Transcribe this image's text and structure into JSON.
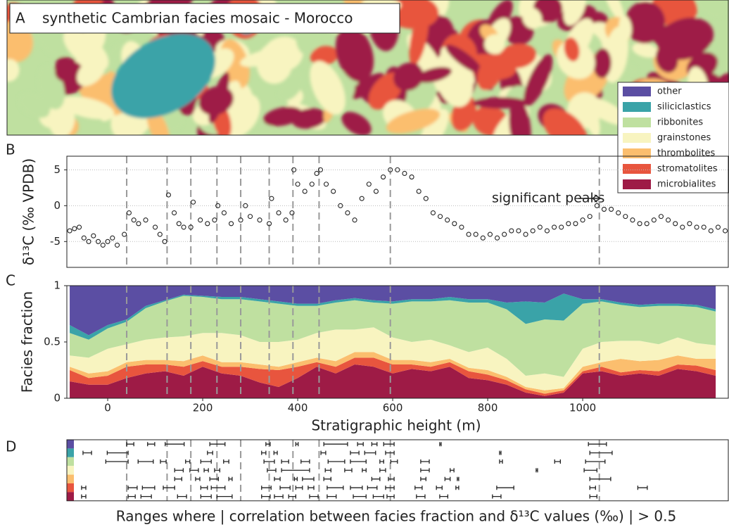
{
  "chart_data": [
    {
      "type": "image",
      "panel_label": "A",
      "title": "synthetic Cambrian facies mosaic - Morocco"
    },
    {
      "type": "scatter",
      "panel_label": "B",
      "ylabel": "δ¹³C (‰ VPDB)",
      "annotation": "significant peaks",
      "xlim": [
        -86,
        1308
      ],
      "ylim": [
        -8.6,
        6.9
      ],
      "yticks": [
        -5,
        0,
        5
      ],
      "grid": true,
      "vlines": [
        40,
        125,
        175,
        230,
        280,
        340,
        390,
        445,
        595,
        1035
      ],
      "x": [
        -80,
        -70,
        -60,
        -50,
        -40,
        -30,
        -20,
        -10,
        0,
        10,
        20,
        35,
        45,
        55,
        65,
        80,
        100,
        110,
        120,
        128,
        140,
        150,
        160,
        175,
        180,
        195,
        210,
        225,
        232,
        245,
        260,
        280,
        290,
        300,
        320,
        340,
        345,
        360,
        375,
        388,
        392,
        400,
        415,
        430,
        440,
        448,
        460,
        475,
        490,
        505,
        520,
        535,
        550,
        565,
        580,
        595,
        610,
        625,
        640,
        655,
        670,
        685,
        700,
        715,
        730,
        745,
        760,
        775,
        790,
        805,
        820,
        835,
        850,
        865,
        880,
        895,
        910,
        925,
        940,
        955,
        970,
        985,
        1000,
        1015,
        1030,
        1045,
        1060,
        1075,
        1090,
        1105,
        1120,
        1135,
        1150,
        1165,
        1180,
        1195,
        1210,
        1225,
        1240,
        1255,
        1270,
        1285,
        1300
      ],
      "values": [
        -3.5,
        -3.2,
        -3,
        -4.5,
        -5,
        -4.2,
        -5,
        -5.5,
        -5,
        -4.5,
        -5.5,
        -4,
        -1,
        -2,
        -2.5,
        -2,
        -3,
        -4,
        -5,
        1.5,
        -1,
        -2.5,
        -3,
        -3,
        0.5,
        -2,
        -2.5,
        -2,
        0,
        -1,
        -2.5,
        -2,
        0,
        -1.5,
        -2,
        -2.5,
        1,
        -1,
        -2,
        -1,
        5,
        3,
        2,
        3,
        4.5,
        5,
        3,
        2,
        0,
        -1,
        -2,
        1,
        3,
        2,
        4,
        5,
        5,
        4.5,
        4,
        2,
        1,
        -1,
        -1.5,
        -2,
        -2.5,
        -3,
        -4,
        -4,
        -4.5,
        -4,
        -4.5,
        -4,
        -3.5,
        -3.5,
        -4,
        -3.5,
        -3,
        -3.5,
        -3,
        -3,
        -2.5,
        -2.5,
        -2,
        -1.5,
        0,
        -0.5,
        -0.5,
        -1,
        -1.5,
        -2,
        -2.5,
        -2.5,
        -2,
        -1.5,
        -2,
        -2.5,
        -3,
        -2.5,
        -3,
        -3,
        -3.5,
        -3,
        -3.5
      ]
    },
    {
      "type": "stacked-area",
      "panel_label": "C",
      "ylabel": "Facies fraction",
      "xlabel": "Stratigraphic height (m)",
      "xlim": [
        -86,
        1308
      ],
      "xticks": [
        0,
        200,
        400,
        600,
        800,
        1000
      ],
      "ylim": [
        0,
        1
      ],
      "yticks": [
        0,
        0.5,
        1
      ],
      "x": [
        -80,
        -40,
        0,
        40,
        80,
        120,
        160,
        200,
        240,
        280,
        320,
        360,
        400,
        440,
        480,
        520,
        560,
        600,
        640,
        680,
        720,
        760,
        800,
        840,
        880,
        920,
        960,
        1000,
        1040,
        1080,
        1120,
        1160,
        1200,
        1240,
        1280
      ],
      "series": [
        {
          "name": "other",
          "color": "#5b4ea3",
          "values": [
            0.35,
            0.44,
            0.35,
            0.3,
            0.18,
            0.13,
            0.08,
            0.09,
            0.1,
            0.1,
            0.12,
            0.14,
            0.16,
            0.16,
            0.13,
            0.11,
            0.13,
            0.14,
            0.12,
            0.12,
            0.1,
            0.12,
            0.12,
            0.15,
            0.14,
            0.15,
            0.07,
            0.12,
            0.12,
            0.15,
            0.17,
            0.16,
            0.16,
            0.17,
            0.21
          ]
        },
        {
          "name": "siliciclastics",
          "color": "#3aa3a8",
          "values": [
            0.07,
            0.04,
            0.03,
            0.02,
            0.02,
            0.01,
            0.01,
            0.01,
            0.02,
            0.02,
            0.02,
            0.02,
            0.02,
            0.02,
            0.02,
            0.02,
            0.02,
            0.02,
            0.02,
            0.02,
            0.03,
            0.03,
            0.03,
            0.06,
            0.2,
            0.15,
            0.24,
            0.04,
            0.02,
            0.02,
            0.02,
            0.02,
            0.02,
            0.02,
            0.02
          ]
        },
        {
          "name": "ribbonites",
          "color": "#bfe0a0",
          "values": [
            0.2,
            0.16,
            0.18,
            0.2,
            0.28,
            0.32,
            0.36,
            0.32,
            0.3,
            0.32,
            0.36,
            0.34,
            0.3,
            0.24,
            0.24,
            0.26,
            0.22,
            0.3,
            0.36,
            0.34,
            0.4,
            0.44,
            0.4,
            0.44,
            0.46,
            0.48,
            0.5,
            0.4,
            0.36,
            0.32,
            0.3,
            0.34,
            0.28,
            0.32,
            0.3
          ]
        },
        {
          "name": "grainstones",
          "color": "#f8f4c0",
          "values": [
            0.1,
            0.14,
            0.2,
            0.16,
            0.18,
            0.2,
            0.22,
            0.2,
            0.26,
            0.24,
            0.2,
            0.22,
            0.2,
            0.22,
            0.28,
            0.2,
            0.22,
            0.2,
            0.16,
            0.2,
            0.12,
            0.14,
            0.2,
            0.16,
            0.1,
            0.15,
            0.1,
            0.16,
            0.18,
            0.16,
            0.18,
            0.14,
            0.16,
            0.14,
            0.12
          ]
        },
        {
          "name": "thrombolites",
          "color": "#fbbe6e",
          "values": [
            0.03,
            0.04,
            0.04,
            0.04,
            0.04,
            0.04,
            0.05,
            0.05,
            0.04,
            0.04,
            0.04,
            0.03,
            0.04,
            0.04,
            0.05,
            0.05,
            0.05,
            0.04,
            0.04,
            0.04,
            0.03,
            0.03,
            0.04,
            0.03,
            0.02,
            0.03,
            0.02,
            0.04,
            0.04,
            0.12,
            0.08,
            0.1,
            0.08,
            0.06,
            0.1
          ]
        },
        {
          "name": "stromatolites",
          "color": "#e8553e",
          "values": [
            0.1,
            0.06,
            0.08,
            0.1,
            0.08,
            0.06,
            0.08,
            0.05,
            0.06,
            0.08,
            0.12,
            0.15,
            0.1,
            0.04,
            0.06,
            0.06,
            0.08,
            0.08,
            0.04,
            0.04,
            0.04,
            0.06,
            0.05,
            0.04,
            0.03,
            0.02,
            0.02,
            0.02,
            0.04,
            0.03,
            0.03,
            0.04,
            0.04,
            0.05,
            0.05
          ]
        },
        {
          "name": "microbialites",
          "color": "#9e1b46",
          "values": [
            0.15,
            0.12,
            0.12,
            0.18,
            0.22,
            0.24,
            0.2,
            0.28,
            0.22,
            0.2,
            0.14,
            0.1,
            0.18,
            0.28,
            0.22,
            0.3,
            0.28,
            0.22,
            0.26,
            0.24,
            0.28,
            0.18,
            0.16,
            0.12,
            0.05,
            0.02,
            0.05,
            0.22,
            0.24,
            0.2,
            0.22,
            0.2,
            0.26,
            0.24,
            0.2
          ]
        }
      ]
    },
    {
      "type": "range",
      "panel_label": "D",
      "caption": "Ranges where | correlation between facies fraction and δ¹³C values (‰) | > 0.5",
      "series": [
        {
          "color": "#5b4ea3",
          "ranges": [
            [
              40,
              55
            ],
            [
              84,
              99
            ],
            [
              121,
              161
            ],
            [
              215,
              247
            ],
            [
              333,
              342
            ],
            [
              396,
              401
            ],
            [
              455,
              505
            ],
            [
              526,
              538
            ],
            [
              556,
              567
            ],
            [
              581,
              603
            ],
            [
              699,
              702
            ],
            [
              1012,
              1050
            ]
          ]
        },
        {
          "color": "#3aa3a8",
          "ranges": [
            [
              -52,
              -34
            ],
            [
              -1,
              43
            ],
            [
              210,
              221
            ],
            [
              324,
              333
            ],
            [
              350,
              357
            ],
            [
              449,
              459
            ],
            [
              511,
              529
            ],
            [
              541,
              564
            ],
            [
              585,
              603
            ],
            [
              825,
              828
            ],
            [
              1015,
              1062
            ]
          ]
        },
        {
          "color": "#bfe0a0",
          "ranges": [
            [
              -4,
              43
            ],
            [
              64,
              96
            ],
            [
              111,
              123
            ],
            [
              164,
              173
            ],
            [
              196,
              218
            ],
            [
              244,
              255
            ],
            [
              329,
              351
            ],
            [
              366,
              381
            ],
            [
              407,
              425
            ],
            [
              464,
              499
            ],
            [
              511,
              544
            ],
            [
              573,
              581
            ],
            [
              596,
              610
            ],
            [
              659,
              677
            ],
            [
              825,
              831
            ],
            [
              941,
              953
            ],
            [
              1006,
              1047
            ]
          ]
        },
        {
          "color": "#f8f4c0",
          "ranges": [
            [
              141,
              159
            ],
            [
              173,
              191
            ],
            [
              203,
              212
            ],
            [
              225,
              236
            ],
            [
              336,
              354
            ],
            [
              366,
              425
            ],
            [
              458,
              470
            ],
            [
              499,
              514
            ],
            [
              536,
              544
            ],
            [
              573,
              585
            ],
            [
              659,
              677
            ],
            [
              721,
              729
            ],
            [
              902,
              905
            ],
            [
              1003,
              1030
            ]
          ]
        },
        {
          "color": "#fbbe6e",
          "ranges": [
            [
              141,
              156
            ],
            [
              185,
              194
            ],
            [
              215,
              233
            ],
            [
              255,
              262
            ],
            [
              351,
              363
            ],
            [
              393,
              399
            ],
            [
              410,
              434
            ],
            [
              455,
              470
            ],
            [
              556,
              573
            ],
            [
              591,
              603
            ],
            [
              659,
              670
            ],
            [
              710,
              721
            ],
            [
              736,
              739
            ],
            [
              1015,
              1059
            ]
          ]
        },
        {
          "color": "#e8553e",
          "ranges": [
            [
              -55,
              -46
            ],
            [
              43,
              62
            ],
            [
              73,
              99
            ],
            [
              117,
              141
            ],
            [
              196,
              210
            ],
            [
              218,
              247
            ],
            [
              324,
              344
            ],
            [
              363,
              384
            ],
            [
              396,
              410
            ],
            [
              422,
              434
            ],
            [
              462,
              496
            ],
            [
              511,
              536
            ],
            [
              547,
              567
            ],
            [
              585,
              603
            ],
            [
              647,
              662
            ],
            [
              692,
              704
            ],
            [
              733,
              739
            ],
            [
              819,
              855
            ],
            [
              1015,
              1027
            ],
            [
              1116,
              1136
            ]
          ]
        },
        {
          "color": "#9e1b46",
          "ranges": [
            [
              -55,
              -46
            ],
            [
              43,
              58
            ],
            [
              70,
              92
            ],
            [
              147,
              166
            ],
            [
              196,
              218
            ],
            [
              230,
              262
            ],
            [
              324,
              342
            ],
            [
              351,
              369
            ],
            [
              381,
              396
            ],
            [
              425,
              443
            ],
            [
              462,
              481
            ],
            [
              517,
              544
            ],
            [
              559,
              581
            ],
            [
              588,
              603
            ],
            [
              650,
              668
            ],
            [
              699,
              716
            ],
            [
              810,
              828
            ],
            [
              1015,
              1030
            ]
          ]
        }
      ]
    }
  ]
}
